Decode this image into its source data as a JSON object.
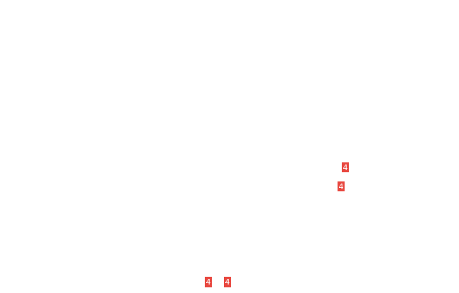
{
  "page": {
    "background": "#ffffff"
  },
  "badge_style": {
    "background_color": "#e8473f",
    "text_color": "#ffffff"
  },
  "badges": [
    {
      "label": "4"
    },
    {
      "label": "4"
    },
    {
      "label": "4"
    },
    {
      "label": "4"
    }
  ]
}
